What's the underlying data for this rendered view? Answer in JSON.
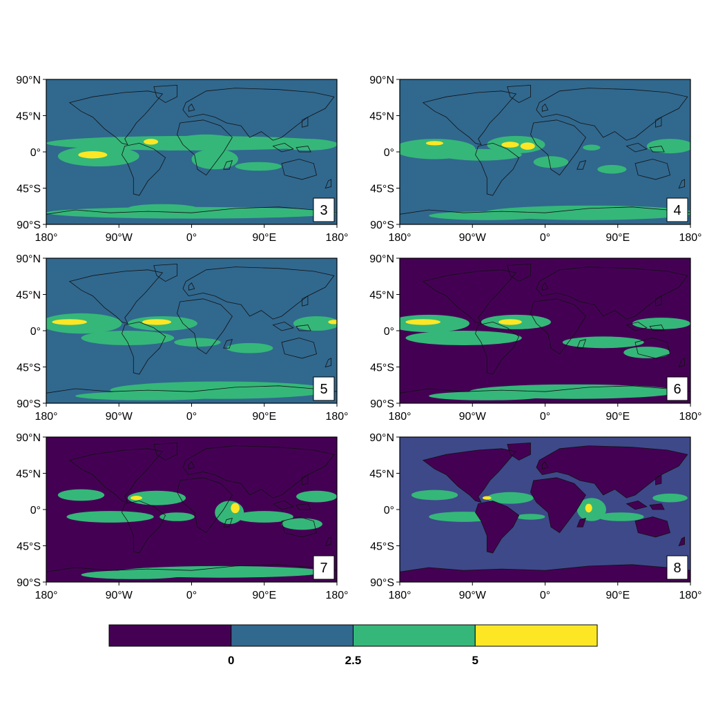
{
  "colors": {
    "lt0": "#440154",
    "b0_25": "#31688e",
    "b25_5": "#35b779",
    "gt5": "#fde725",
    "coast": "#111111",
    "frame": "#000000"
  },
  "axes": {
    "lat_labels": [
      "90°N",
      "45°N",
      "0°",
      "45°S",
      "90°S"
    ],
    "lon_labels_left": [
      "180°",
      "90°W",
      "0°",
      "90°E",
      "180°"
    ],
    "lon_labels_right": [
      "180°",
      "90°W",
      "0°",
      "90°E",
      "180°"
    ]
  },
  "panels": [
    {
      "id": "3",
      "label": "3",
      "background": "b0_25"
    },
    {
      "id": "4",
      "label": "4",
      "background": "b0_25"
    },
    {
      "id": "5",
      "label": "5",
      "background": "b0_25"
    },
    {
      "id": "6",
      "label": "6",
      "background": "lt0"
    },
    {
      "id": "7",
      "label": "7",
      "background": "lt0"
    },
    {
      "id": "8",
      "label": "8",
      "background": "lt0"
    }
  ],
  "colorbar": {
    "ticks": [
      "0",
      "2.5",
      "5"
    ],
    "bins": [
      "lt0",
      "b0_25",
      "b25_5",
      "gt5"
    ]
  }
}
